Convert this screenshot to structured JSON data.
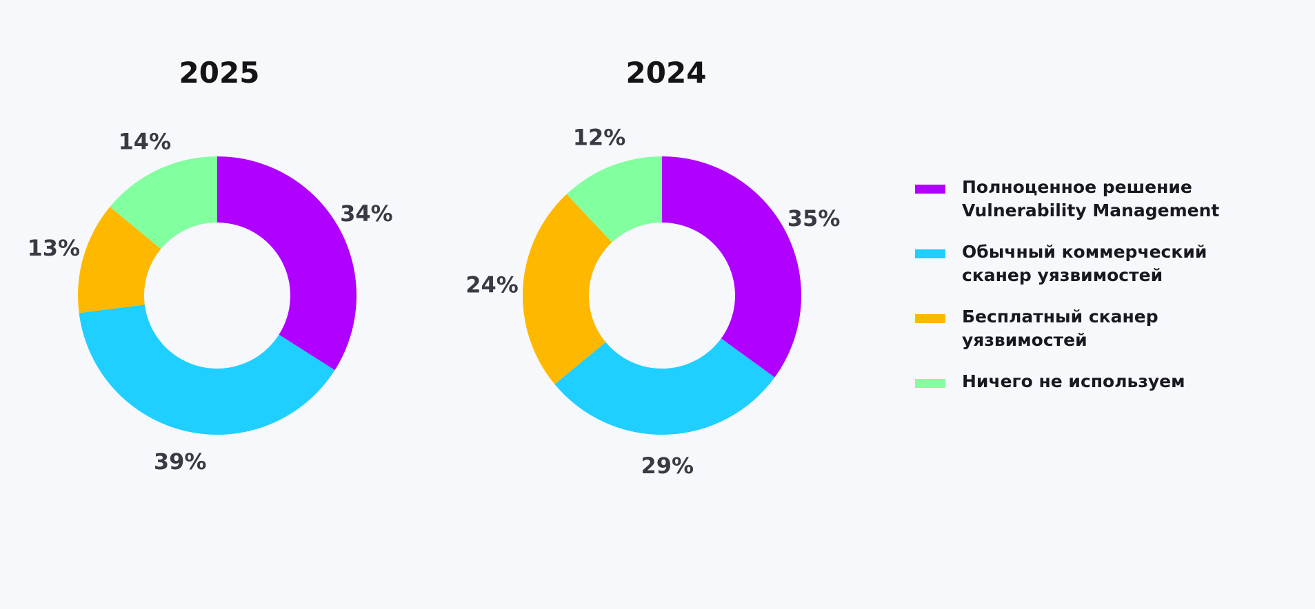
{
  "chart_data": [
    {
      "type": "donut",
      "title": "2025",
      "categories": [
        "Полноценное решение\nVulnerability Management",
        "Обычный коммерческий\nсканер уязвимостей",
        "Бесплатный сканер\nуязвимостей",
        "Ничего не используем"
      ],
      "values": [
        34,
        39,
        13,
        14
      ],
      "labels": [
        "34%",
        "39%",
        "13%",
        "14%"
      ],
      "colors": [
        "#b000ff",
        "#1ecfff",
        "#ffb800",
        "#82ff9e"
      ]
    },
    {
      "type": "donut",
      "title": "2024",
      "categories": [
        "Полноценное решение\nVulnerability Management",
        "Обычный коммерческий\nсканер уязвимостей",
        "Бесплатный сканер\nуязвимостей",
        "Ничего не используем"
      ],
      "values": [
        35,
        29,
        24,
        12
      ],
      "labels": [
        "35%",
        "29%",
        "24%",
        "12%"
      ],
      "colors": [
        "#b000ff",
        "#1ecfff",
        "#ffb800",
        "#82ff9e"
      ]
    }
  ],
  "legend": {
    "placement": "right",
    "items": [
      {
        "label": "Полноценное решение\nVulnerability Management",
        "color": "#b000ff"
      },
      {
        "label": "Обычный коммерческий\nсканер уязвимостей",
        "color": "#1ecfff"
      },
      {
        "label": "Бесплатный сканер\nуязвимостей",
        "color": "#ffb800"
      },
      {
        "label": "Ничего не используем",
        "color": "#82ff9e"
      }
    ]
  }
}
